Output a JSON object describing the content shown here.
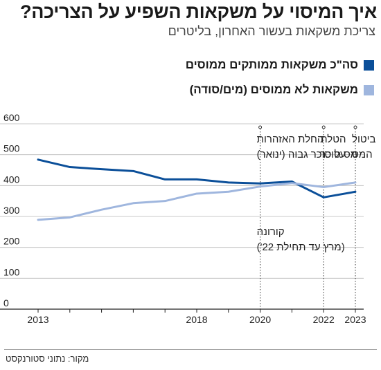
{
  "colors": {
    "sweetened": "#0b4f99",
    "unsweetened": "#9fb6de",
    "axis": "#222222",
    "gridline": "#b8b8b8"
  },
  "chart_data": {
    "type": "line",
    "title": "איך המיסוי על משקאות השפיע על הצריכה?",
    "subtitle": "צריכת משקאות בעשור האחרון, בליטרים",
    "xlabel": "",
    "ylabel": "",
    "x": [
      2013,
      2014,
      2015,
      2016,
      2017,
      2018,
      2019,
      2020,
      2021,
      2022,
      2023
    ],
    "xticks": [
      2013,
      2018,
      2020,
      2022,
      2023
    ],
    "xlim": [
      2013,
      2023
    ],
    "ylim": [
      0,
      600
    ],
    "yticks": [
      0,
      100,
      200,
      300,
      400,
      500,
      600
    ],
    "grid": false,
    "legend_position": "top-right",
    "series": [
      {
        "name": "סה\"כ משקאות ממותקים ממוסים",
        "color": "#0b4f99",
        "values": [
          484,
          460,
          453,
          447,
          420,
          420,
          410,
          407,
          413,
          362,
          380
        ]
      },
      {
        "name": "משקאות לא ממוסים (מים/סודה)",
        "color": "#9fb6de",
        "values": [
          289,
          297,
          322,
          343,
          350,
          374,
          380,
          397,
          408,
          395,
          410
        ]
      }
    ],
    "annotations": [
      {
        "x": 2020,
        "lines": [
          "החלת האזהרות",
          "על סוכר גבוה (ינואר)"
        ]
      },
      {
        "x": 2020,
        "lines": [
          "קורונה",
          "(מרץ עד תחילת 22')"
        ]
      },
      {
        "x": 2022,
        "lines": [
          "הטלת",
          "מס סוכר"
        ]
      },
      {
        "x": 2023,
        "lines": [
          "ביטול",
          "המס"
        ]
      }
    ]
  },
  "source": "מקור: נתוני סטורנקסט"
}
